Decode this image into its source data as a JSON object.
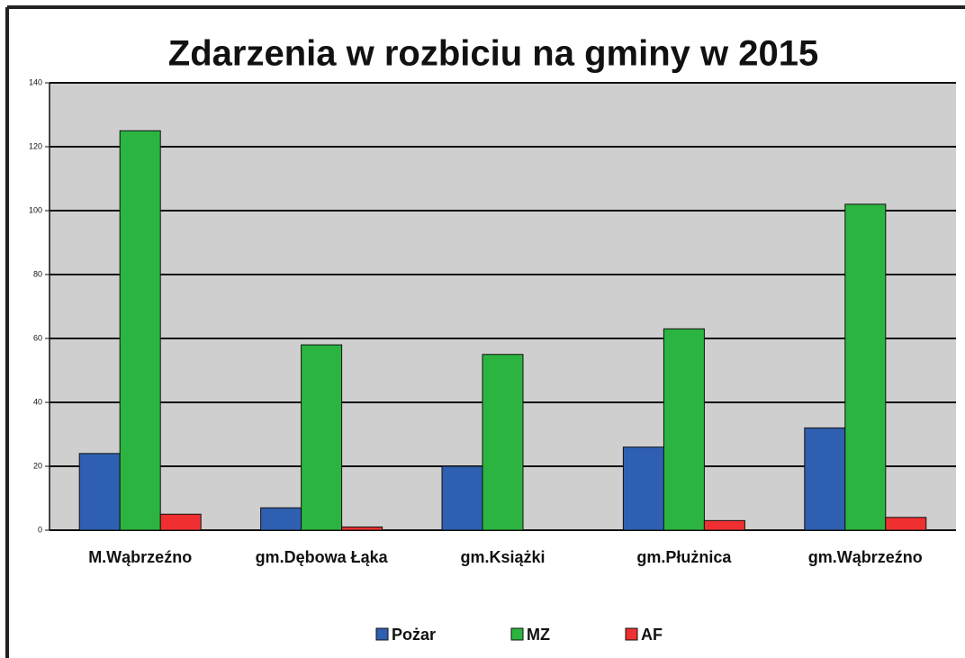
{
  "chart_data": {
    "type": "bar",
    "title": "Zdarzenia w rozbiciu na gminy w 2015",
    "categories": [
      "M.Wąbrzeźno",
      "gm.Dębowa Łąka",
      "gm.Książki",
      "gm.Płużnica",
      "gm.Wąbrzeźno"
    ],
    "series": [
      {
        "name": "Pożar",
        "color": "#2f5fb0",
        "values": [
          24,
          7,
          20,
          26,
          32
        ]
      },
      {
        "name": "MZ",
        "color": "#2bb540",
        "values": [
          125,
          58,
          55,
          63,
          102
        ]
      },
      {
        "name": "AF",
        "color": "#f03030",
        "values": [
          5,
          1,
          0,
          3,
          4
        ]
      }
    ],
    "ylim": [
      0,
      140
    ],
    "yticks": [
      0,
      20,
      40,
      60,
      80,
      100,
      120,
      140
    ],
    "grid": true,
    "legend": "bottom"
  }
}
